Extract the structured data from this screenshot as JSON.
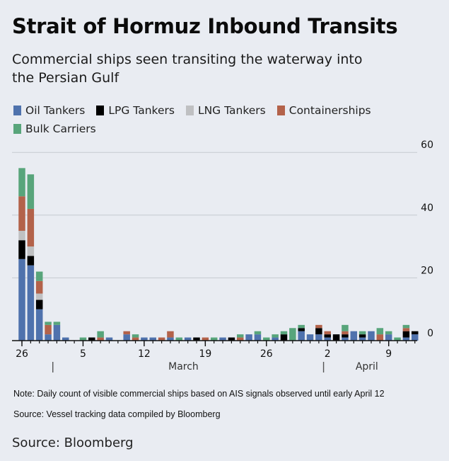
{
  "header": {
    "title": "Strait of Hormuz Inbound Transits",
    "subtitle": "Commercial ships seen transiting the waterway into the Persian Gulf"
  },
  "legend": [
    {
      "label": "Oil Tankers",
      "color": "#4f72ad"
    },
    {
      "label": "LPG Tankers",
      "color": "#000000"
    },
    {
      "label": "LNG Tankers",
      "color": "#bfc0c2"
    },
    {
      "label": "Containerships",
      "color": "#b3624a"
    },
    {
      "label": "Bulk Carriers",
      "color": "#58a57b"
    }
  ],
  "footer": {
    "note": "Note: Daily count of visible commercial ships based on AIS signals observed until early April 12",
    "source_line": "Source: Vessel tracking data compiled by Bloomberg",
    "credit": "Source: Bloomberg"
  },
  "chart_data": {
    "type": "bar",
    "stacked": true,
    "title": "Strait of Hormuz Inbound Transits",
    "subtitle": "Commercial ships seen transiting the waterway into the Persian Gulf",
    "xlabel": "",
    "ylabel": "",
    "ylim": [
      0,
      60
    ],
    "yticks": [
      0,
      20,
      40,
      60
    ],
    "y_axis_position": "right",
    "grid": true,
    "legend_position": "top",
    "x_tick_labels": [
      {
        "index": 0,
        "label": "26"
      },
      {
        "index": 7,
        "label": "5"
      },
      {
        "index": 14,
        "label": "12"
      },
      {
        "index": 21,
        "label": "19"
      },
      {
        "index": 28,
        "label": "26"
      },
      {
        "index": 35,
        "label": "2"
      },
      {
        "index": 42,
        "label": "9"
      }
    ],
    "month_labels": [
      {
        "label": "March",
        "center_index": 18.5,
        "separator_before_index": 3
      },
      {
        "label": "April",
        "center_index": 39.5,
        "separator_before_index": 34
      }
    ],
    "categories": [
      "Feb 26",
      "Feb 27",
      "Feb 28",
      "Mar 1",
      "Mar 2",
      "Mar 3",
      "Mar 4",
      "Mar 5",
      "Mar 6",
      "Mar 7",
      "Mar 8",
      "Mar 9",
      "Mar 10",
      "Mar 11",
      "Mar 12",
      "Mar 13",
      "Mar 14",
      "Mar 15",
      "Mar 16",
      "Mar 17",
      "Mar 18",
      "Mar 19",
      "Mar 20",
      "Mar 21",
      "Mar 22",
      "Mar 23",
      "Mar 24",
      "Mar 25",
      "Mar 26",
      "Mar 27",
      "Mar 28",
      "Mar 29",
      "Mar 30",
      "Mar 31",
      "Apr 1",
      "Apr 2",
      "Apr 3",
      "Apr 4",
      "Apr 5",
      "Apr 6",
      "Apr 7",
      "Apr 8",
      "Apr 9",
      "Apr 10",
      "Apr 11",
      "Apr 12"
    ],
    "series": [
      {
        "name": "Oil Tankers",
        "color": "#4f72ad",
        "values": [
          26,
          24,
          10,
          2,
          5,
          1,
          0,
          0,
          0,
          0,
          1,
          0,
          2,
          0,
          1,
          1,
          0,
          1,
          0,
          1,
          0,
          0,
          0,
          1,
          0,
          0,
          2,
          2,
          0,
          1,
          0,
          0,
          3,
          2,
          2,
          1,
          0,
          1,
          3,
          1,
          3,
          0,
          2,
          0,
          1,
          2
        ]
      },
      {
        "name": "LPG Tankers",
        "color": "#000000",
        "values": [
          6,
          3,
          3,
          0,
          0,
          0,
          0,
          0,
          1,
          0,
          0,
          0,
          0,
          0,
          0,
          0,
          0,
          0,
          0,
          0,
          1,
          0,
          0,
          0,
          1,
          0,
          0,
          0,
          0,
          0,
          2,
          0,
          1,
          0,
          2,
          1,
          2,
          1,
          0,
          1,
          0,
          0,
          0,
          0,
          2,
          1
        ]
      },
      {
        "name": "LNG Tankers",
        "color": "#bfc0c2",
        "values": [
          3,
          3,
          2,
          0,
          0,
          0,
          0,
          0,
          0,
          0,
          0,
          0,
          0,
          0,
          0,
          0,
          0,
          0,
          0,
          0,
          0,
          0,
          0,
          0,
          0,
          0,
          0,
          0,
          0,
          0,
          0,
          0,
          0,
          0,
          0,
          0,
          0,
          0,
          0,
          0,
          0,
          0,
          0,
          0,
          0,
          0
        ]
      },
      {
        "name": "Containerships",
        "color": "#b3624a",
        "values": [
          11,
          12,
          4,
          3,
          0,
          0,
          0,
          0,
          0,
          1,
          0,
          0,
          1,
          1,
          0,
          0,
          1,
          2,
          0,
          0,
          0,
          1,
          0,
          0,
          0,
          1,
          0,
          0,
          0,
          0,
          0,
          0,
          0,
          0,
          1,
          1,
          0,
          1,
          0,
          0,
          0,
          2,
          0,
          0,
          1,
          0
        ]
      },
      {
        "name": "Bulk Carriers",
        "color": "#58a57b",
        "values": [
          9,
          11,
          3,
          1,
          1,
          0,
          0,
          1,
          0,
          2,
          0,
          0,
          0,
          1,
          0,
          0,
          0,
          0,
          1,
          0,
          0,
          0,
          1,
          0,
          0,
          1,
          0,
          1,
          1,
          1,
          1,
          4,
          1,
          0,
          0,
          0,
          0,
          2,
          0,
          1,
          0,
          2,
          1,
          1,
          1,
          0
        ]
      }
    ]
  }
}
